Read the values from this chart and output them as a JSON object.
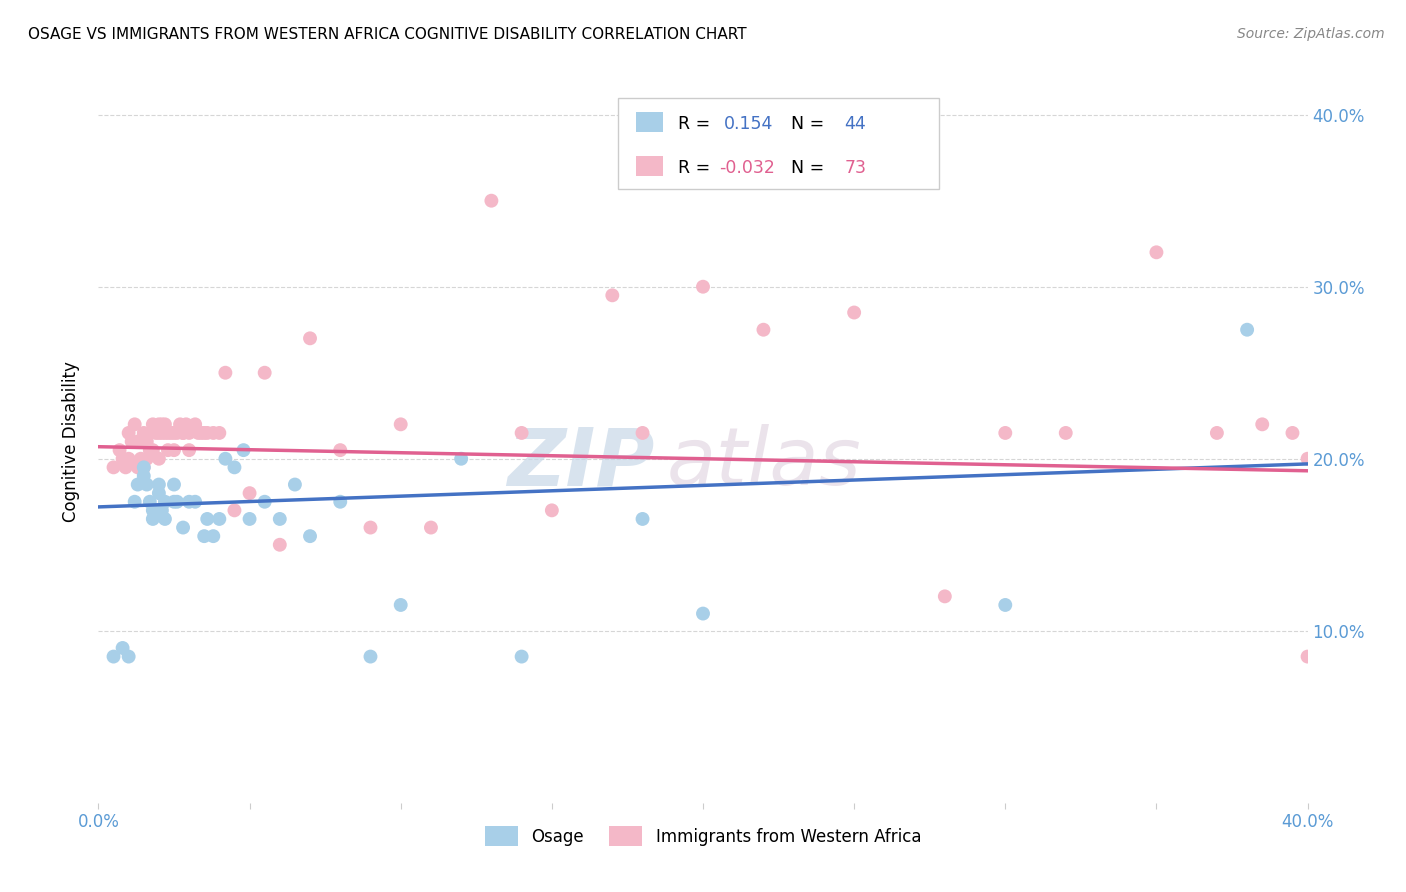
{
  "title": "OSAGE VS IMMIGRANTS FROM WESTERN AFRICA COGNITIVE DISABILITY CORRELATION CHART",
  "source": "Source: ZipAtlas.com",
  "ylabel": "Cognitive Disability",
  "xlim": [
    0.0,
    0.4
  ],
  "ylim": [
    0.0,
    0.42
  ],
  "yticks": [
    0.1,
    0.2,
    0.3,
    0.4
  ],
  "ytick_labels": [
    "10.0%",
    "20.0%",
    "30.0%",
    "40.0%"
  ],
  "xticks": [
    0.0,
    0.05,
    0.1,
    0.15,
    0.2,
    0.25,
    0.3,
    0.35,
    0.4
  ],
  "xtick_labels": [
    "0.0%",
    "",
    "",
    "",
    "",
    "",
    "",
    "",
    "40.0%"
  ],
  "legend_R1": "0.154",
  "legend_N1": "44",
  "legend_R2": "-0.032",
  "legend_N2": "73",
  "blue_color": "#a8cfe8",
  "pink_color": "#f4b8c8",
  "blue_line_color": "#4472c4",
  "pink_line_color": "#e06090",
  "watermark_zip": "ZIP",
  "watermark_atlas": "atlas",
  "osage_x": [
    0.005,
    0.008,
    0.01,
    0.012,
    0.013,
    0.015,
    0.015,
    0.016,
    0.017,
    0.018,
    0.018,
    0.019,
    0.02,
    0.02,
    0.021,
    0.022,
    0.022,
    0.025,
    0.025,
    0.026,
    0.028,
    0.03,
    0.032,
    0.035,
    0.036,
    0.038,
    0.04,
    0.042,
    0.045,
    0.048,
    0.05,
    0.055,
    0.06,
    0.065,
    0.07,
    0.08,
    0.09,
    0.1,
    0.12,
    0.14,
    0.18,
    0.2,
    0.3,
    0.38
  ],
  "osage_y": [
    0.085,
    0.09,
    0.085,
    0.175,
    0.185,
    0.195,
    0.19,
    0.185,
    0.175,
    0.17,
    0.165,
    0.17,
    0.185,
    0.18,
    0.17,
    0.175,
    0.165,
    0.185,
    0.175,
    0.175,
    0.16,
    0.175,
    0.175,
    0.155,
    0.165,
    0.155,
    0.165,
    0.2,
    0.195,
    0.205,
    0.165,
    0.175,
    0.165,
    0.185,
    0.155,
    0.175,
    0.085,
    0.115,
    0.2,
    0.085,
    0.165,
    0.11,
    0.115,
    0.275
  ],
  "pink_x": [
    0.005,
    0.007,
    0.008,
    0.009,
    0.01,
    0.01,
    0.011,
    0.012,
    0.013,
    0.013,
    0.014,
    0.015,
    0.015,
    0.016,
    0.016,
    0.017,
    0.017,
    0.018,
    0.018,
    0.019,
    0.02,
    0.02,
    0.02,
    0.021,
    0.021,
    0.022,
    0.022,
    0.023,
    0.023,
    0.024,
    0.025,
    0.025,
    0.026,
    0.027,
    0.028,
    0.028,
    0.029,
    0.03,
    0.03,
    0.032,
    0.033,
    0.034,
    0.035,
    0.036,
    0.038,
    0.04,
    0.042,
    0.045,
    0.05,
    0.055,
    0.06,
    0.07,
    0.08,
    0.09,
    0.1,
    0.11,
    0.13,
    0.14,
    0.15,
    0.17,
    0.18,
    0.2,
    0.22,
    0.25,
    0.28,
    0.3,
    0.32,
    0.35,
    0.37,
    0.385,
    0.395,
    0.4,
    0.4
  ],
  "pink_y": [
    0.195,
    0.205,
    0.2,
    0.195,
    0.215,
    0.2,
    0.21,
    0.22,
    0.195,
    0.21,
    0.2,
    0.215,
    0.195,
    0.21,
    0.2,
    0.215,
    0.205,
    0.22,
    0.205,
    0.215,
    0.215,
    0.22,
    0.2,
    0.215,
    0.22,
    0.22,
    0.215,
    0.205,
    0.215,
    0.215,
    0.215,
    0.205,
    0.215,
    0.22,
    0.215,
    0.215,
    0.22,
    0.215,
    0.205,
    0.22,
    0.215,
    0.215,
    0.215,
    0.215,
    0.215,
    0.215,
    0.25,
    0.17,
    0.18,
    0.25,
    0.15,
    0.27,
    0.205,
    0.16,
    0.22,
    0.16,
    0.35,
    0.215,
    0.17,
    0.295,
    0.215,
    0.3,
    0.275,
    0.285,
    0.12,
    0.215,
    0.215,
    0.32,
    0.215,
    0.22,
    0.215,
    0.2,
    0.085
  ]
}
